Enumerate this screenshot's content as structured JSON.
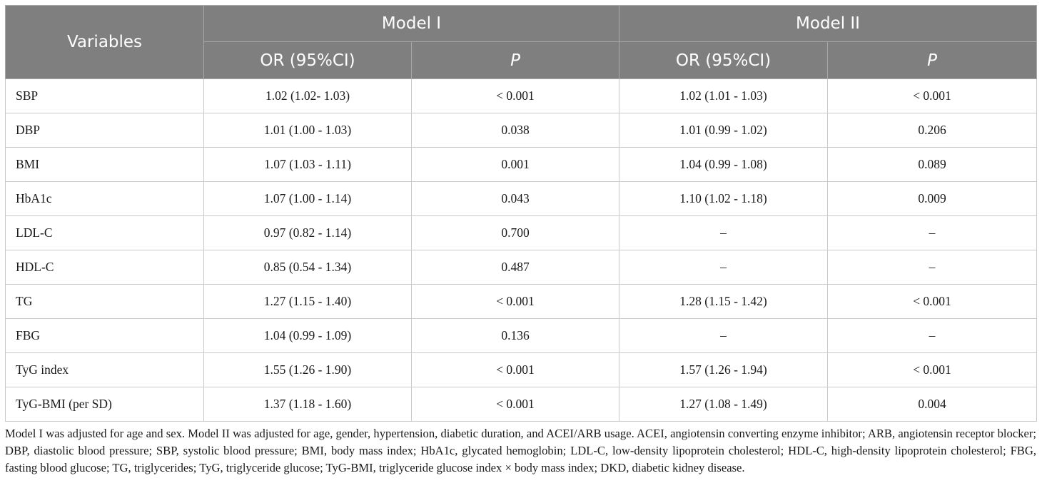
{
  "header": {
    "variables": "Variables",
    "model1": "Model I",
    "model2": "Model II",
    "or_label": "OR (95%CI)",
    "p_label": "P"
  },
  "rows": [
    {
      "variable": "SBP",
      "m1_or": "1.02 (1.02- 1.03)",
      "m1_p": "< 0.001",
      "m2_or": "1.02 (1.01 - 1.03)",
      "m2_p": "< 0.001"
    },
    {
      "variable": "DBP",
      "m1_or": "1.01 (1.00 - 1.03)",
      "m1_p": "0.038",
      "m2_or": "1.01 (0.99 - 1.02)",
      "m2_p": "0.206"
    },
    {
      "variable": "BMI",
      "m1_or": "1.07 (1.03 - 1.11)",
      "m1_p": "0.001",
      "m2_or": "1.04 (0.99 - 1.08)",
      "m2_p": "0.089"
    },
    {
      "variable": "HbA1c",
      "m1_or": "1.07 (1.00 - 1.14)",
      "m1_p": "0.043",
      "m2_or": "1.10 (1.02 - 1.18)",
      "m2_p": "0.009"
    },
    {
      "variable": "LDL-C",
      "m1_or": "0.97 (0.82 - 1.14)",
      "m1_p": "0.700",
      "m2_or": "–",
      "m2_p": "–"
    },
    {
      "variable": "HDL-C",
      "m1_or": "0.85 (0.54 - 1.34)",
      "m1_p": "0.487",
      "m2_or": "–",
      "m2_p": "–"
    },
    {
      "variable": "TG",
      "m1_or": "1.27 (1.15 - 1.40)",
      "m1_p": "< 0.001",
      "m2_or": "1.28 (1.15 - 1.42)",
      "m2_p": "< 0.001"
    },
    {
      "variable": "FBG",
      "m1_or": "1.04 (0.99 - 1.09)",
      "m1_p": "0.136",
      "m2_or": "–",
      "m2_p": "–"
    },
    {
      "variable": "TyG index",
      "m1_or": "1.55 (1.26 - 1.90)",
      "m1_p": "< 0.001",
      "m2_or": "1.57 (1.26 - 1.94)",
      "m2_p": "< 0.001"
    },
    {
      "variable": "TyG-BMI (per SD)",
      "m1_or": "1.37 (1.18 - 1.60)",
      "m1_p": "< 0.001",
      "m2_or": "1.27 (1.08 - 1.49)",
      "m2_p": "0.004"
    }
  ],
  "footnote": "Model I was adjusted for age and sex. Model II was adjusted for age, gender, hypertension, diabetic duration, and ACEI/ARB usage. ACEI, angiotensin converting enzyme inhibitor; ARB, angiotensin receptor blocker; DBP, diastolic blood pressure; SBP, systolic blood pressure; BMI, body mass index; HbA1c, glycated hemoglobin; LDL-C, low-density lipoprotein cholesterol; HDL-C, high-density lipoprotein cholesterol; FBG, fasting blood glucose; TG, triglycerides; TyG, triglyceride glucose; TyG-BMI, triglyceride glucose index × body mass index; DKD, diabetic kidney disease.",
  "colors": {
    "header_bg": "#7f7f7f",
    "header_text": "#ffffff",
    "grid": "#c9c9c9"
  }
}
